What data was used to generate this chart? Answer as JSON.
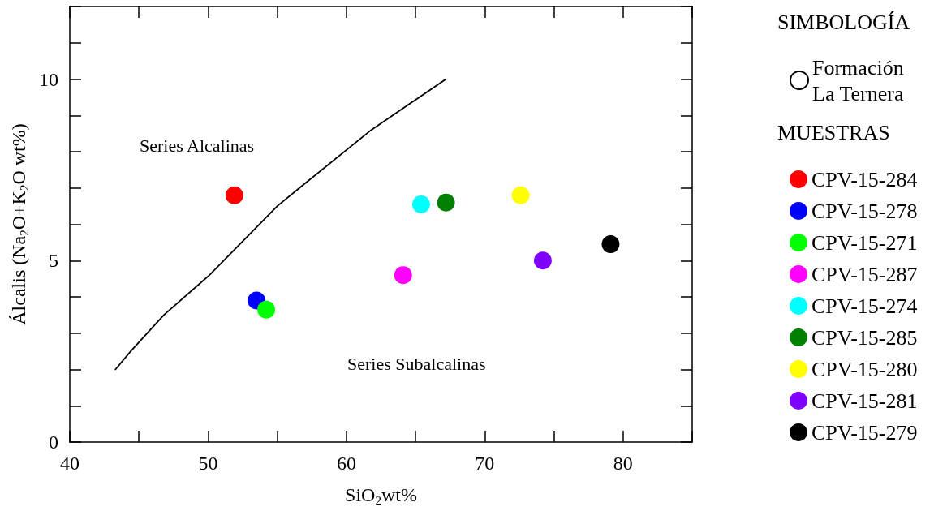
{
  "chart_data": {
    "type": "scatter",
    "xlabel": "SiO$_{2}$wt%",
    "ylabel": "Álcalis (Na$_{2}$O+K$_{2}$O wt%)",
    "legend_title": "SIMBOLOGÍA",
    "xlim": [
      40,
      85
    ],
    "xticks": [
      40,
      {
        "value": 45,
        "label": null
      },
      50,
      {
        "value": 55,
        "label": null
      },
      60,
      {
        "value": 65,
        "label": null
      },
      70,
      {
        "value": 75,
        "label": null
      },
      80,
      {
        "value": 85,
        "label": null
      }
    ],
    "ylim": [
      0,
      12
    ],
    "yticks": [
      0,
      {
        "value": 1,
        "label": null
      },
      {
        "value": 2,
        "label": null
      },
      {
        "value": 3,
        "label": null
      },
      {
        "value": 4,
        "label": null
      },
      5,
      {
        "value": 6,
        "label": null
      },
      {
        "value": 7,
        "label": null
      },
      {
        "value": 8,
        "label": null
      },
      {
        "value": 9,
        "label": null
      },
      10,
      {
        "value": 11,
        "label": null
      },
      {
        "value": 12,
        "label": null
      }
    ],
    "grid": false,
    "legend": "right",
    "marker": "circle",
    "annotations": [
      "Series Alcalinas",
      "MUESTRAS",
      "Series Subalcalinas"
    ],
    "series": [
      {
        "type": "line",
        "color": "#000000",
        "marker": "none",
        "line_style": "solid",
        "x": [
          43.3,
          44.4,
          46.8,
          50.1,
          55.0,
          56.6,
          61.8,
          67.2
        ],
        "values": [
          2.0,
          2.5,
          3.5,
          4.6,
          6.5,
          7.0,
          8.6,
          10.0
        ]
      },
      {
        "name": "Formación La Ternera",
        "color": "#ffffff"
      },
      {
        "name": "CPV-15-284",
        "color": "#ff0000",
        "x": [
          51.9
        ],
        "values": [
          6.8
        ]
      },
      {
        "name": "CPV-15-278",
        "color": "#0000ff",
        "x": [
          53.5
        ],
        "values": [
          3.9
        ]
      },
      {
        "name": "CPV-15-271",
        "color": "#00ff00",
        "x": [
          54.2
        ],
        "values": [
          3.65
        ]
      },
      {
        "name": "CPV-15-287",
        "color": "#ff00ff",
        "x": [
          64.1
        ],
        "values": [
          4.6
        ]
      },
      {
        "name": "CPV-15-274",
        "color": "#00ffff",
        "x": [
          65.4
        ],
        "values": [
          6.55
        ]
      },
      {
        "name": "CPV-15-285",
        "color": "#008000",
        "x": [
          67.2
        ],
        "values": [
          6.6
        ]
      },
      {
        "name": "CPV-15-280",
        "color": "#ffff00",
        "x": [
          72.6
        ],
        "values": [
          6.8
        ]
      },
      {
        "name": "CPV-15-281",
        "color": "#8000ff",
        "x": [
          74.2
        ],
        "values": [
          5.0
        ]
      },
      {
        "name": "CPV-15-279",
        "color": "#000000",
        "x": [
          79.1
        ],
        "values": [
          5.45
        ]
      }
    ]
  }
}
